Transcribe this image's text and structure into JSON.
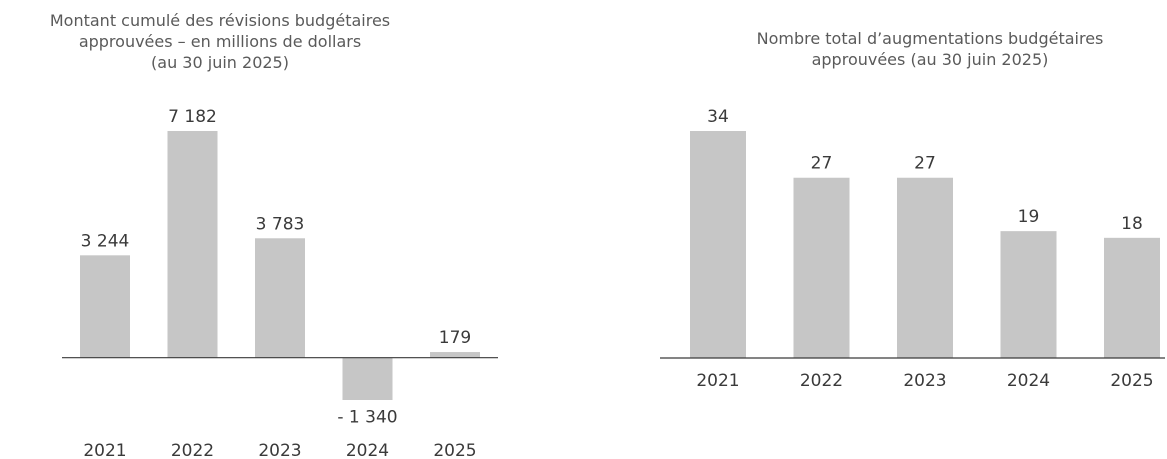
{
  "chart_data": [
    {
      "type": "bar",
      "title_lines": [
        "Montant cumulé des révisions budgétaires",
        "approuvées – en millions de dollars",
        "(au 30 juin 2025)"
      ],
      "categories": [
        "2021",
        "2022",
        "2023",
        "2024",
        "2025"
      ],
      "values": [
        3244,
        7182,
        3783,
        -1340,
        179
      ],
      "value_labels": [
        "3 244",
        "7 182",
        "3 783",
        "- 1 340",
        "179"
      ],
      "ylim": [
        -1340,
        7182
      ],
      "grid": false,
      "legend": "none",
      "bar_color": "#c6c6c6",
      "axis_color": "#3a3a3a"
    },
    {
      "type": "bar",
      "title_lines": [
        "Nombre total d’augmentations budgétaires",
        "approuvées (au 30 juin 2025)"
      ],
      "categories": [
        "2021",
        "2022",
        "2023",
        "2024",
        "2025"
      ],
      "values": [
        34,
        27,
        27,
        19,
        18
      ],
      "value_labels": [
        "34",
        "27",
        "27",
        "19",
        "18"
      ],
      "ylim": [
        0,
        34
      ],
      "grid": false,
      "legend": "none",
      "bar_color": "#c6c6c6",
      "axis_color": "#3a3a3a"
    }
  ]
}
